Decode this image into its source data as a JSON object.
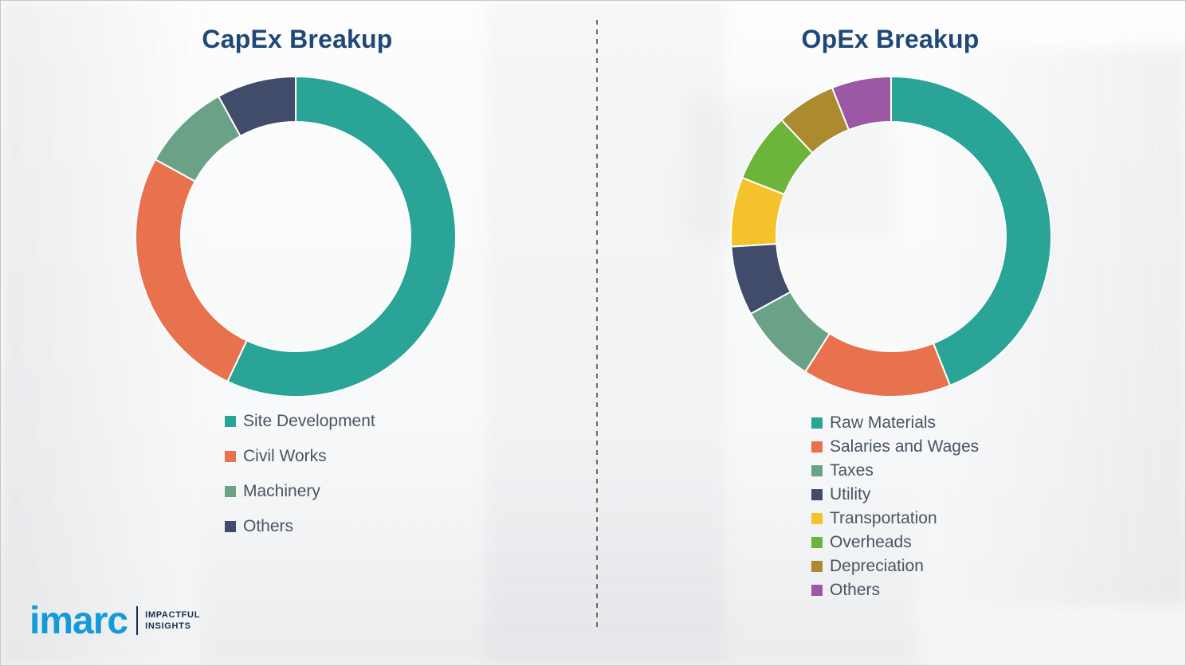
{
  "chart_data": [
    {
      "type": "pie",
      "donut": true,
      "title": "CapEx Breakup",
      "categories": [
        "Site Development",
        "Civil Works",
        "Machinery",
        "Others"
      ],
      "values": [
        57,
        26,
        9,
        8
      ],
      "colors": [
        "#2aa496",
        "#e8714e",
        "#6ba287",
        "#414c6b"
      ],
      "legend_position": "bottom-left",
      "start_angle_deg": 0,
      "direction": "clockwise"
    },
    {
      "type": "pie",
      "donut": true,
      "title": "OpEx Breakup",
      "categories": [
        "Raw Materials",
        "Salaries and Wages",
        "Taxes",
        "Utility",
        "Transportation",
        "Overheads",
        "Depreciation",
        "Others"
      ],
      "values": [
        44,
        15,
        8,
        7,
        7,
        7,
        6,
        6
      ],
      "colors": [
        "#2aa496",
        "#e8714e",
        "#6ba287",
        "#414c6b",
        "#f5c22b",
        "#6cb43a",
        "#ac8b30",
        "#9c57a5"
      ],
      "legend_position": "bottom-left",
      "start_angle_deg": 0,
      "direction": "clockwise"
    }
  ],
  "logo": {
    "brand": "imarc",
    "tagline1": "IMPACTFUL",
    "tagline2": "INSIGHTS",
    "brand_color": "#129bd8"
  },
  "style": {
    "title_color": "#1f4878",
    "legend_text_color": "#4a5365",
    "divider_style": "dashed"
  }
}
